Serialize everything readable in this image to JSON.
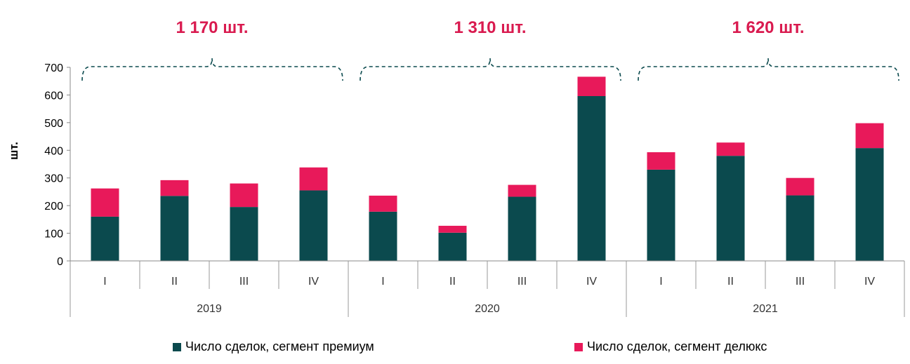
{
  "chart_data": {
    "type": "bar",
    "stacked": true,
    "ylabel": "шт.",
    "ylim": [
      0,
      700
    ],
    "yticks": [
      0,
      100,
      200,
      300,
      400,
      500,
      600,
      700
    ],
    "groups": [
      {
        "year": "2019",
        "total_label": "1 170 шт.",
        "quarters": [
          "I",
          "II",
          "III",
          "IV"
        ]
      },
      {
        "year": "2020",
        "total_label": "1 310 шт.",
        "quarters": [
          "I",
          "II",
          "III",
          "IV"
        ]
      },
      {
        "year": "2021",
        "total_label": "1 620 шт.",
        "quarters": [
          "I",
          "II",
          "III",
          "IV"
        ]
      }
    ],
    "series": [
      {
        "name": "Число сделок, сегмент премиум",
        "color": "#0b4a4e",
        "values": [
          160,
          235,
          195,
          255,
          178,
          102,
          232,
          596,
          330,
          380,
          237,
          408
        ]
      },
      {
        "name": "Число сделок, сегмент делюкс",
        "color": "#e8195a",
        "values": [
          102,
          57,
          85,
          83,
          58,
          25,
          43,
          70,
          63,
          48,
          63,
          90
        ]
      }
    ],
    "grid": false,
    "legend_position": "bottom"
  }
}
